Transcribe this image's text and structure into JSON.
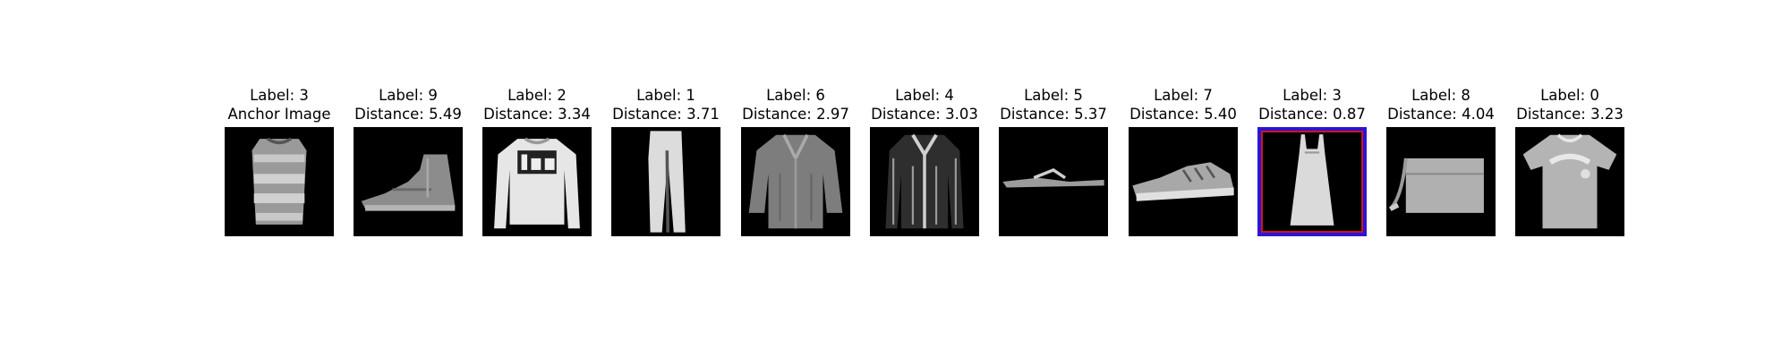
{
  "panels": [
    {
      "label": "Label: 3",
      "sub": "Anchor Image",
      "item": "dress-striped"
    },
    {
      "label": "Label: 9",
      "sub": "Distance: 5.49",
      "item": "ankle-boot"
    },
    {
      "label": "Label: 2",
      "sub": "Distance: 3.34",
      "item": "pullover-lee"
    },
    {
      "label": "Label: 1",
      "sub": "Distance: 3.71",
      "item": "trouser"
    },
    {
      "label": "Label: 6",
      "sub": "Distance: 2.97",
      "item": "shirt"
    },
    {
      "label": "Label: 4",
      "sub": "Distance: 3.03",
      "item": "coat"
    },
    {
      "label": "Label: 5",
      "sub": "Distance: 5.37",
      "item": "sandal"
    },
    {
      "label": "Label: 7",
      "sub": "Distance: 5.40",
      "item": "sneaker"
    },
    {
      "label": "Label: 3",
      "sub": "Distance: 0.87",
      "item": "dress",
      "selected": true
    },
    {
      "label": "Label: 8",
      "sub": "Distance: 4.04",
      "item": "bag"
    },
    {
      "label": "Label: 0",
      "sub": "Distance: 3.23",
      "item": "tshirt"
    }
  ],
  "highlight_colors": {
    "outer": "#2a14d8",
    "inner": "#d01515"
  }
}
